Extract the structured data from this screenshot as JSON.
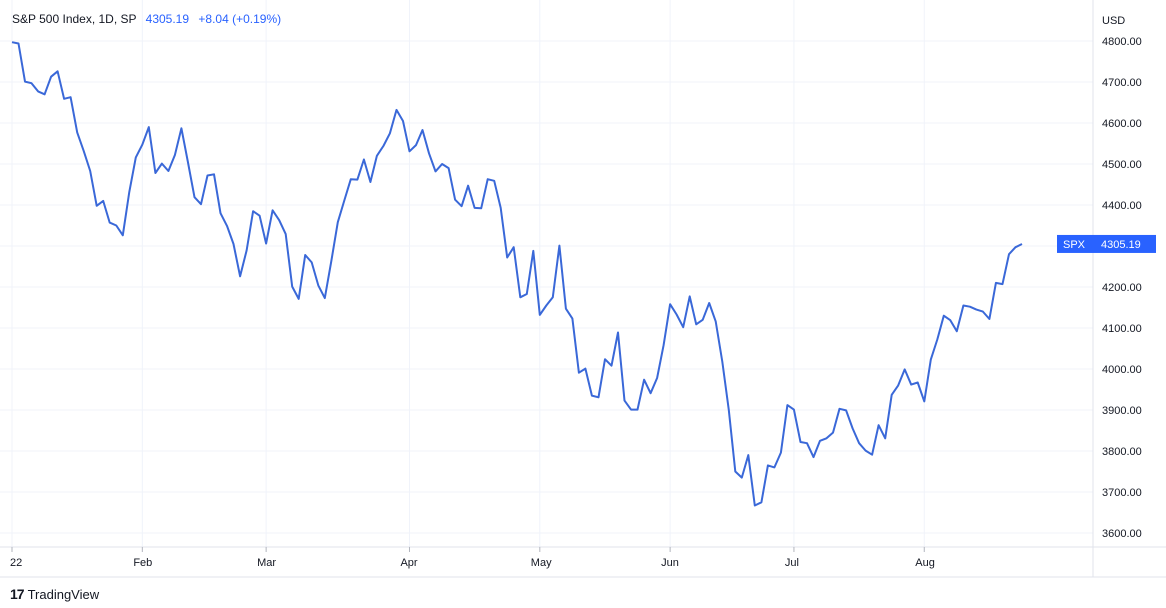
{
  "header": {
    "symbol_label": "S&P 500 Index, 1D, SP",
    "last_value": "4305.19",
    "change": "+8.04 (+0.19%)"
  },
  "footer": {
    "brand_logo": "17",
    "brand_name": "TradingView"
  },
  "colors": {
    "line": "#3a68d8",
    "badge": "#2962ff",
    "grid": "#f0f3fa",
    "axis": "#e0e3eb"
  },
  "chart_data": {
    "type": "line",
    "currency_label": "USD",
    "ylim": [
      3560,
      4830
    ],
    "y_ticks": [
      3600,
      3700,
      3800,
      3900,
      4000,
      4100,
      4200,
      4300,
      4400,
      4500,
      4600,
      4700,
      4800
    ],
    "y_tick_labels": [
      "3600.00",
      "3700.00",
      "3800.00",
      "3900.00",
      "4000.00",
      "4100.00",
      "4200.00",
      "4300.00",
      "4400.00",
      "4500.00",
      "4600.00",
      "4700.00",
      "4800.00"
    ],
    "x_tick_labels": [
      "22",
      "Feb",
      "Mar",
      "Apr",
      "May",
      "Jun",
      "Jul",
      "Aug"
    ],
    "x_tick_index": [
      0,
      20,
      39,
      61,
      81,
      101,
      120,
      140
    ],
    "grid": true,
    "last_badge": {
      "symbol": "SPX",
      "value": "4305.19"
    },
    "series": [
      {
        "values": [
          4797,
          4794,
          4701,
          4697,
          4677,
          4670,
          4713,
          4726,
          4659,
          4663,
          4577,
          4532,
          4483,
          4398,
          4410,
          4357,
          4350,
          4326,
          4432,
          4516,
          4547,
          4590,
          4478,
          4501,
          4483,
          4522,
          4587,
          4505,
          4419,
          4402,
          4472,
          4475,
          4380,
          4349,
          4305,
          4226,
          4289,
          4385,
          4374,
          4306,
          4387,
          4363,
          4329,
          4201,
          4171,
          4278,
          4260,
          4204,
          4173,
          4263,
          4358,
          4411,
          4463,
          4462,
          4511,
          4456,
          4520,
          4544,
          4575,
          4632,
          4605,
          4531,
          4546,
          4583,
          4526,
          4482,
          4500,
          4490,
          4413,
          4397,
          4447,
          4393,
          4392,
          4463,
          4459,
          4393,
          4272,
          4297,
          4175,
          4183,
          4288,
          4132,
          4155,
          4175,
          4301,
          4147,
          4123,
          3991,
          4001,
          3935,
          3931,
          4024,
          4008,
          4089,
          3923,
          3901,
          3901,
          3974,
          3941,
          3978,
          4058,
          4158,
          4133,
          4102,
          4177,
          4109,
          4120,
          4161,
          4116,
          4018,
          3900,
          3750,
          3735,
          3790,
          3667,
          3675,
          3765,
          3760,
          3796,
          3912,
          3901,
          3822,
          3819,
          3785,
          3825,
          3831,
          3845,
          3903,
          3899,
          3855,
          3819,
          3801,
          3791,
          3863,
          3831,
          3937,
          3960,
          3999,
          3962,
          3967,
          3921,
          4023,
          4072,
          4130,
          4119,
          4092,
          4155,
          4152,
          4145,
          4140,
          4122,
          4210,
          4207,
          4280,
          4297,
          4305
        ]
      }
    ]
  }
}
